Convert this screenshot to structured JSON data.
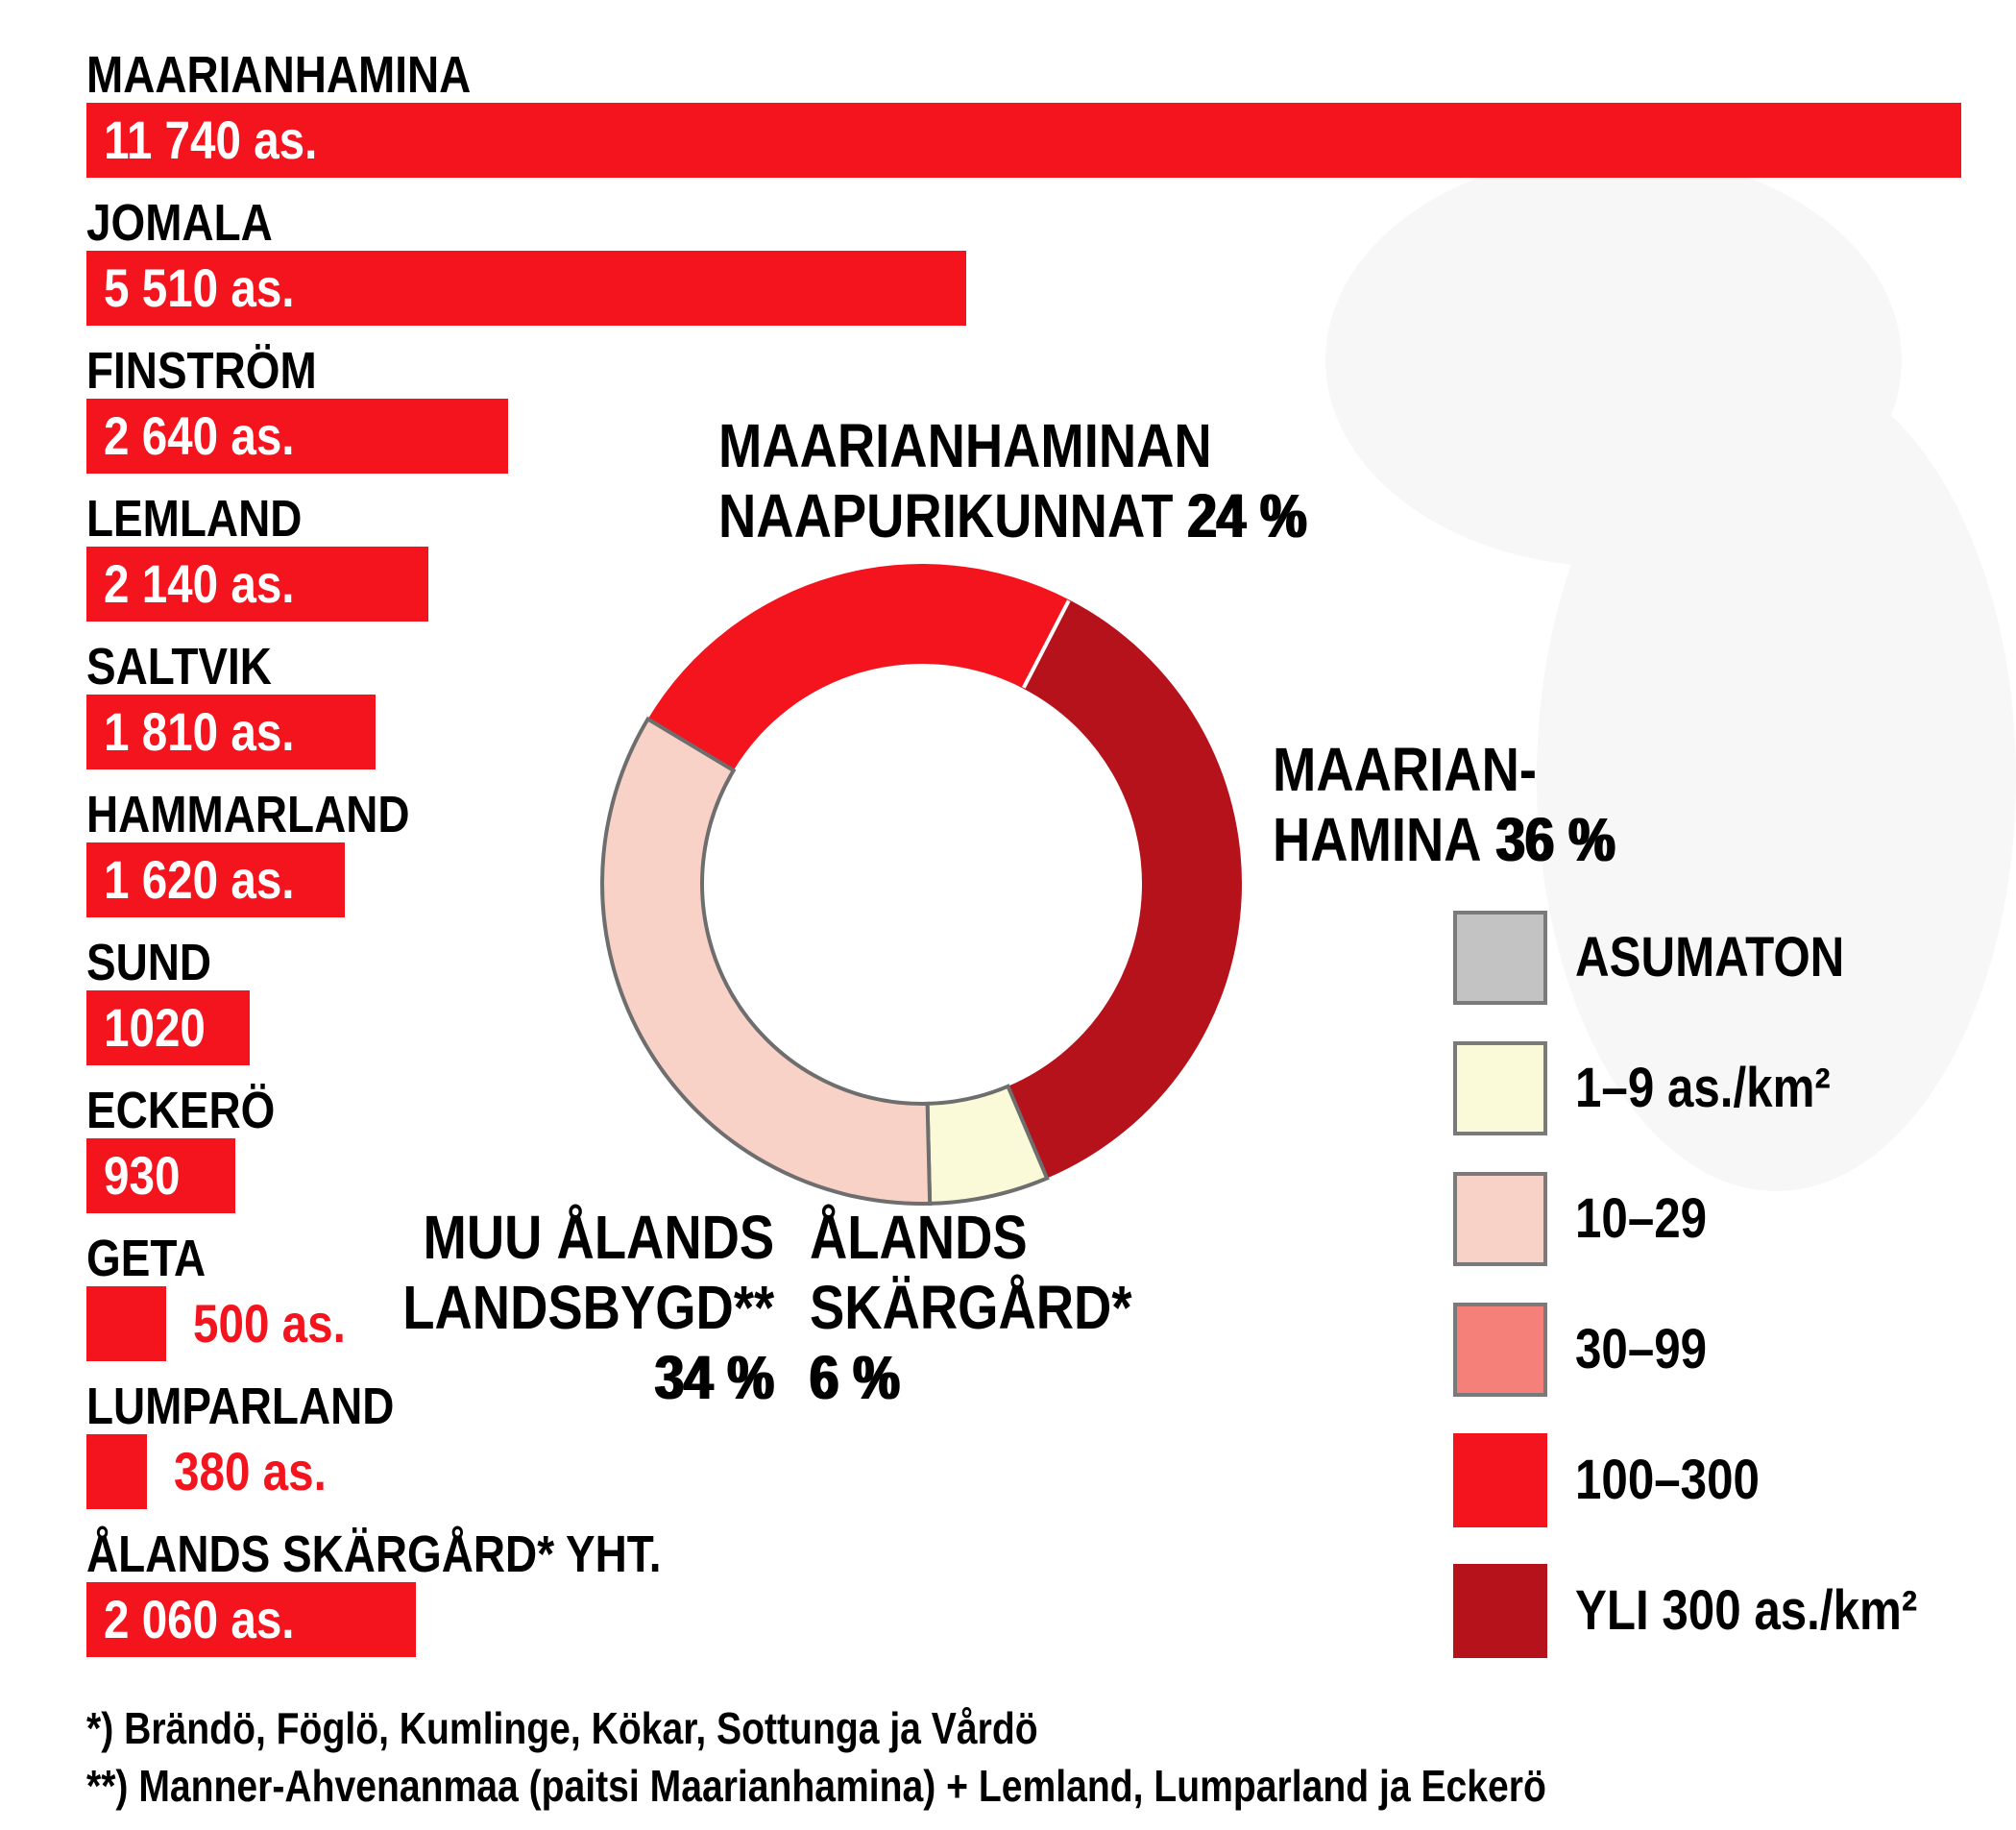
{
  "chart_data": [
    {
      "type": "bar",
      "orientation": "horizontal",
      "title": "",
      "unit": "as. (asukasta / inhabitants)",
      "categories": [
        "MAARIANHAMINA",
        "JOMALA",
        "FINSTRÖM",
        "LEMLAND",
        "SALTVIK",
        "HAMMARLAND",
        "SUND",
        "ECKERÖ",
        "GETA",
        "LUMPARLAND",
        "ÅLANDS SKÄRGÅRD* YHT."
      ],
      "values": [
        11740,
        5510,
        2640,
        2140,
        1810,
        1620,
        1020,
        930,
        500,
        380,
        2060
      ],
      "value_labels": [
        "11 740 as.",
        "5 510 as.",
        "2 640 as.",
        "2 140 as.",
        "1 810 as.",
        "1 620 as.",
        "1020",
        "930",
        "500 as.",
        "380 as.",
        "2 060 as."
      ],
      "value_label_outside": [
        false,
        false,
        false,
        false,
        false,
        false,
        false,
        false,
        true,
        true,
        false
      ],
      "xlim": [
        0,
        11740
      ],
      "bar_color": "#f3141e",
      "outside_label_color": "#f3141e"
    },
    {
      "type": "donut",
      "start_angle_deg": -59,
      "clockwise": true,
      "slices": [
        {
          "label": "MAARIANHAMINAN NAAPURIKUNNAT",
          "pct": 24,
          "color": "#f3141e",
          "outlined": false
        },
        {
          "label": "MAARIANHAMINA",
          "pct": 36,
          "color": "#b5121c",
          "outlined": false
        },
        {
          "label": "ÅLANDS SKÄRGÅRD*",
          "pct": 6,
          "color": "#fafad8",
          "outlined": true
        },
        {
          "label": "MUU ÅLANDS LANDSBYGD**",
          "pct": 34,
          "color": "#f8d2c7",
          "outlined": true
        }
      ],
      "outline_color": "#6e6e6e",
      "divider_color": "#ffffff"
    }
  ],
  "donut_labels": {
    "neighbors": {
      "line1": "MAARIANHAMINAN",
      "line2": "NAAPURIKUNNAT",
      "pct": "24 %"
    },
    "city": {
      "line1": "MAARIAN-",
      "line2": "HAMINA",
      "pct": "36 %"
    },
    "countryside": {
      "line1": "MUU ÅLANDS",
      "line2": "LANDSBYGD**",
      "pct": "34 %"
    },
    "archipelago": {
      "line1": "ÅLANDS",
      "line2": "SKÄRGÅRD*",
      "pct": "6 %"
    }
  },
  "legend": {
    "items": [
      {
        "label": "ASUMATON",
        "color": "#c4c3c3",
        "border": true
      },
      {
        "label": "1–9 as./km²",
        "color": "#fafad8",
        "border": true
      },
      {
        "label": "10–29",
        "color": "#f8d2c7",
        "border": true
      },
      {
        "label": "30–99",
        "color": "#f5807a",
        "border": true
      },
      {
        "label": "100–300",
        "color": "#f3141e",
        "border": false
      },
      {
        "label": "YLI 300 as./km²",
        "color": "#b5121c",
        "border": false
      }
    ],
    "swatch_border_color": "#7a7a7a"
  },
  "footnotes": {
    "line1": "*) Brändö, Föglö, Kumlinge, Kökar, Sottunga ja Vårdö",
    "line2": "**) Manner-Ahvenanmaa (paitsi Maarianhamina) + Lemland, Lumparland ja Eckerö"
  },
  "colors": {
    "bar_red": "#f3141e",
    "dark_red": "#b5121c",
    "pale_pink": "#f8d2c7",
    "pale_yellow": "#fafad8",
    "salmon": "#f5807a",
    "gray": "#c4c3c3",
    "donut_outline": "#6e6e6e",
    "text": "#000000"
  }
}
